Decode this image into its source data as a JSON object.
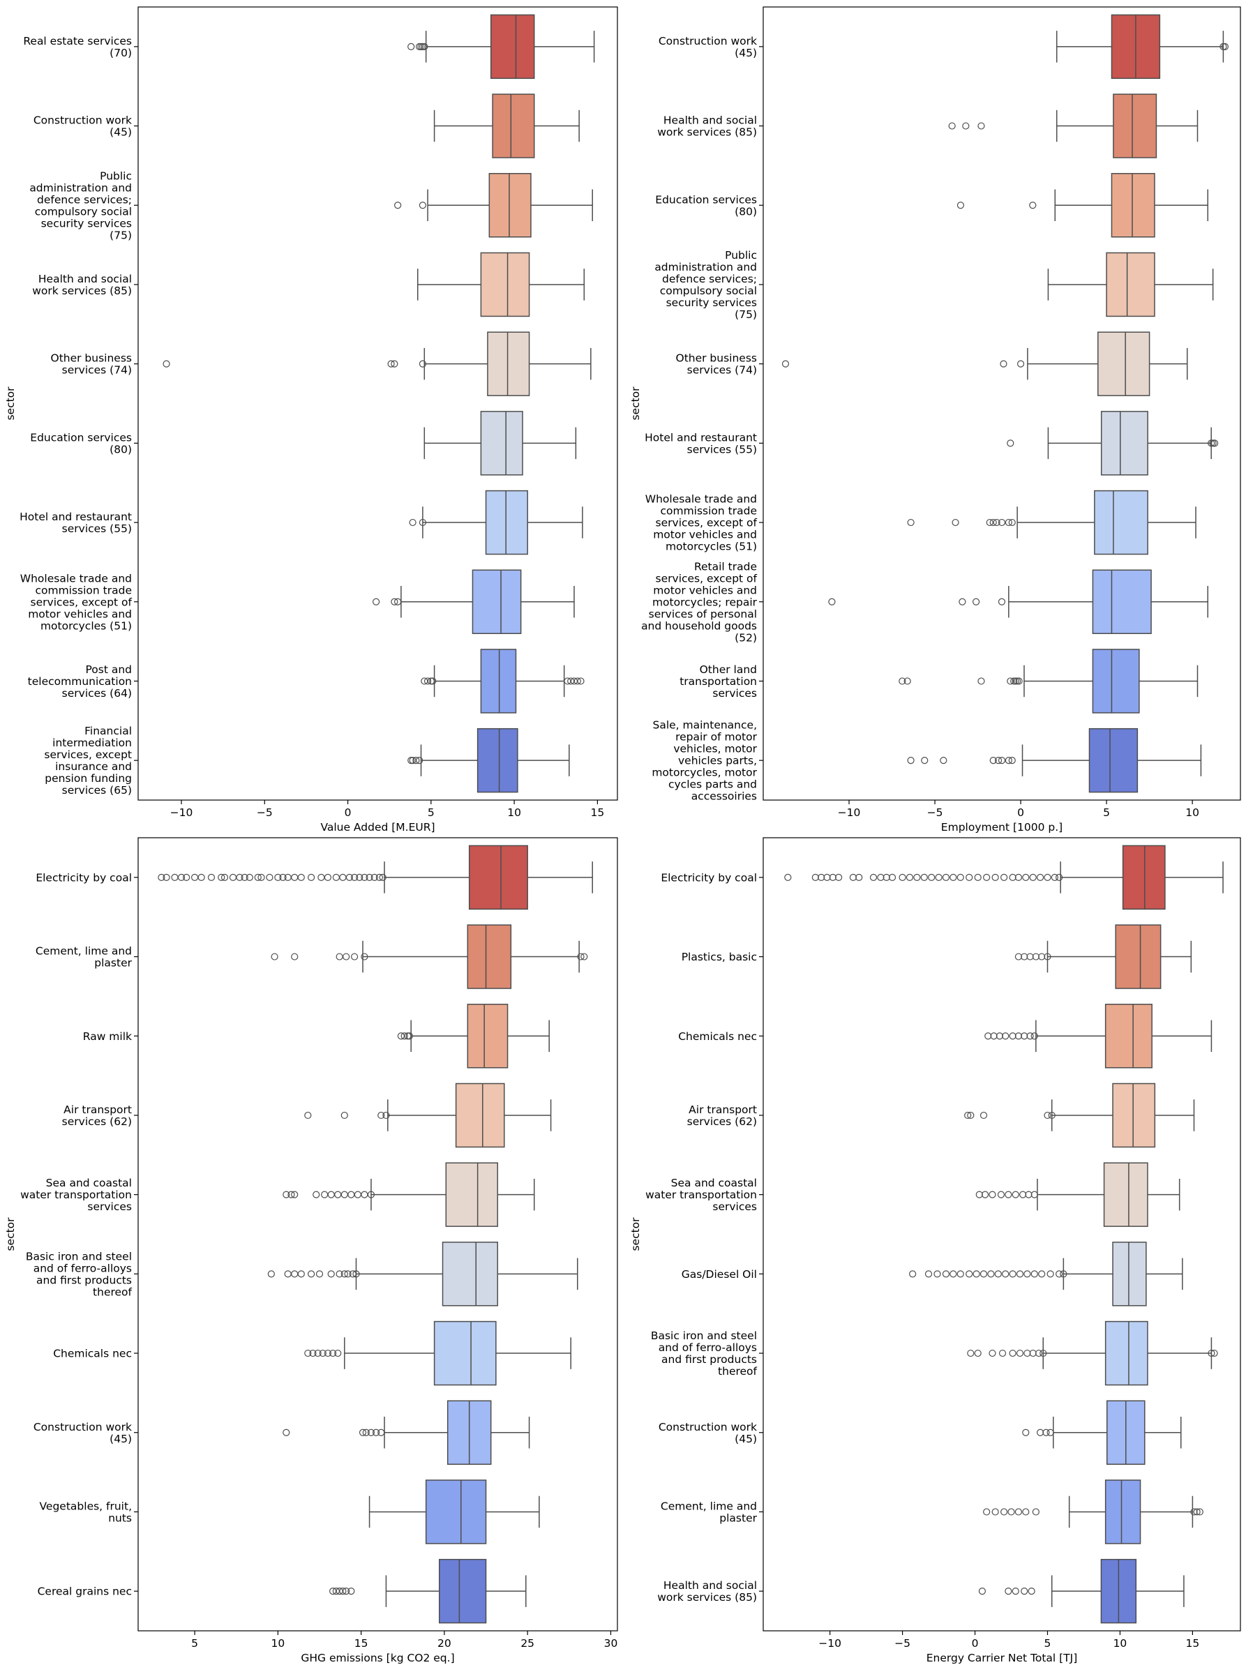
{
  "chart_data": [
    {
      "type": "boxplot",
      "orientation": "horizontal",
      "xlabel": "Value Added [M.EUR]",
      "ylabel": "sector",
      "xlim": [
        -12.6,
        16.2
      ],
      "xticks": [
        -10,
        -5,
        0,
        5,
        10,
        15
      ],
      "palette": [
        "#c85550",
        "#dc8a72",
        "#e8a98e",
        "#edc5b0",
        "#e6d7ce",
        "#d2d9e6",
        "#bacff4",
        "#a1b9f4",
        "#8aa3ee",
        "#6b7fd7"
      ],
      "categories": [
        "Real estate services\n(70)",
        "Construction work\n(45)",
        "Public\nadministration and\ndefence services;\ncompulsory social\nsecurity services\n(75)",
        "Health and social\nwork services (85)",
        "Other business\nservices (74)",
        "Education services\n(80)",
        "Hotel and restaurant\nservices (55)",
        "Wholesale trade and\ncommission trade\nservices, except of\nmotor vehicles and\nmotorcycles (51)",
        "Post and\ntelecommunication\nservices (64)",
        "Financial\nintermediation\nservices, except\ninsurance and\npension funding\nservices (65)"
      ],
      "boxes": [
        {
          "whislo": 4.7,
          "q1": 8.6,
          "med": 10.1,
          "q3": 11.2,
          "whishi": 14.8,
          "fliers": [
            3.8,
            4.3,
            4.4,
            4.5,
            4.6
          ]
        },
        {
          "whislo": 5.2,
          "q1": 8.7,
          "med": 9.8,
          "q3": 11.2,
          "whishi": 13.9,
          "fliers": []
        },
        {
          "whislo": 4.8,
          "q1": 8.5,
          "med": 9.7,
          "q3": 11.0,
          "whishi": 14.7,
          "fliers": [
            3.0,
            4.5
          ]
        },
        {
          "whislo": 4.2,
          "q1": 8.0,
          "med": 9.6,
          "q3": 10.9,
          "whishi": 14.2,
          "fliers": []
        },
        {
          "whislo": 4.6,
          "q1": 8.4,
          "med": 9.6,
          "q3": 10.9,
          "whishi": 14.6,
          "fliers": [
            -10.9,
            2.6,
            2.8,
            4.5
          ]
        },
        {
          "whislo": 4.6,
          "q1": 8.0,
          "med": 9.5,
          "q3": 10.5,
          "whishi": 13.7,
          "fliers": []
        },
        {
          "whislo": 4.5,
          "q1": 8.3,
          "med": 9.5,
          "q3": 10.8,
          "whishi": 14.1,
          "fliers": [
            3.9,
            4.5
          ]
        },
        {
          "whislo": 3.2,
          "q1": 7.5,
          "med": 9.2,
          "q3": 10.4,
          "whishi": 13.6,
          "fliers": [
            1.7,
            2.8,
            3.0
          ]
        },
        {
          "whislo": 5.2,
          "q1": 8.0,
          "med": 9.1,
          "q3": 10.1,
          "whishi": 13.0,
          "fliers": [
            4.6,
            4.8,
            5.0,
            5.1,
            13.2,
            13.4,
            13.6,
            13.8,
            14.0
          ]
        },
        {
          "whislo": 4.4,
          "q1": 7.8,
          "med": 9.1,
          "q3": 10.2,
          "whishi": 13.3,
          "fliers": [
            3.8,
            3.9,
            4.1,
            4.3
          ]
        }
      ]
    },
    {
      "type": "boxplot",
      "orientation": "horizontal",
      "xlabel": "Employment [1000 p.]",
      "ylabel": "sector",
      "xlim": [
        -15.0,
        12.8
      ],
      "xticks": [
        -10,
        -5,
        0,
        5,
        10
      ],
      "palette": [
        "#c85550",
        "#dc8a72",
        "#e8a98e",
        "#edc5b0",
        "#e6d7ce",
        "#d2d9e6",
        "#bacff4",
        "#a1b9f4",
        "#8aa3ee",
        "#6b7fd7"
      ],
      "categories": [
        "Construction work\n(45)",
        "Health and social\nwork services (85)",
        "Education services\n(80)",
        "Public\nadministration and\ndefence services;\ncompulsory social\nsecurity services\n(75)",
        "Other business\nservices (74)",
        "Hotel and restaurant\nservices (55)",
        "Wholesale trade and\ncommission trade\nservices, except of\nmotor vehicles and\nmotorcycles (51)",
        "Retail  trade\nservices, except of\nmotor vehicles and\nmotorcycles; repair\nservices of personal\nand household goods\n(52)",
        "Other land\ntransportation\nservices",
        "Sale, maintenance,\nrepair of motor\nvehicles, motor\nvehicles parts,\nmotorcycles, motor\ncycles parts and\naccessoiries"
      ],
      "boxes": [
        {
          "whislo": 2.1,
          "q1": 5.3,
          "med": 6.7,
          "q3": 8.1,
          "whishi": 11.8,
          "fliers": [
            11.8,
            11.9
          ]
        },
        {
          "whislo": 2.1,
          "q1": 5.4,
          "med": 6.5,
          "q3": 7.9,
          "whishi": 10.3,
          "fliers": [
            -4.0,
            -3.2,
            -2.3
          ]
        },
        {
          "whislo": 2.0,
          "q1": 5.3,
          "med": 6.5,
          "q3": 7.8,
          "whishi": 10.9,
          "fliers": [
            -3.5,
            0.7
          ]
        },
        {
          "whislo": 1.6,
          "q1": 5.0,
          "med": 6.2,
          "q3": 7.8,
          "whishi": 11.2,
          "fliers": []
        },
        {
          "whislo": 0.4,
          "q1": 4.5,
          "med": 6.1,
          "q3": 7.5,
          "whishi": 9.7,
          "fliers": [
            -13.7,
            -1.0,
            0.0
          ]
        },
        {
          "whislo": 1.6,
          "q1": 4.7,
          "med": 5.8,
          "q3": 7.4,
          "whishi": 11.1,
          "fliers": [
            -0.6,
            11.1,
            11.2,
            11.3
          ]
        },
        {
          "whislo": -0.2,
          "q1": 4.3,
          "med": 5.4,
          "q3": 7.4,
          "whishi": 10.2,
          "fliers": [
            -6.4,
            -3.8,
            -1.8,
            -1.6,
            -1.4,
            -1.1,
            -0.7,
            -0.5
          ]
        },
        {
          "whislo": -0.7,
          "q1": 4.2,
          "med": 5.3,
          "q3": 7.6,
          "whishi": 10.9,
          "fliers": [
            -11.0,
            -3.4,
            -2.6,
            -1.1
          ]
        },
        {
          "whislo": 0.2,
          "q1": 4.2,
          "med": 5.3,
          "q3": 6.9,
          "whishi": 10.3,
          "fliers": [
            -6.9,
            -6.6,
            -2.3,
            -0.6,
            -0.4,
            -0.3,
            -0.2,
            -0.1
          ]
        },
        {
          "whislo": 0.1,
          "q1": 4.0,
          "med": 5.2,
          "q3": 6.8,
          "whishi": 10.5,
          "fliers": [
            -6.4,
            -5.6,
            -4.5,
            -1.6,
            -1.3,
            -1.1,
            -0.7,
            -0.5
          ]
        }
      ]
    },
    {
      "type": "boxplot",
      "orientation": "horizontal",
      "xlabel": "GHG emissions [kg CO2 eq.]",
      "ylabel": "sector",
      "xlim": [
        1.6,
        30.4
      ],
      "xticks": [
        5,
        10,
        15,
        20,
        25,
        30
      ],
      "palette": [
        "#c85550",
        "#dc8a72",
        "#e8a98e",
        "#edc5b0",
        "#e6d7ce",
        "#d2d9e6",
        "#bacff4",
        "#a1b9f4",
        "#8aa3ee",
        "#6b7fd7"
      ],
      "categories": [
        "Electricity by coal",
        "Cement, lime and\nplaster",
        "Raw milk",
        "Air transport\nservices (62)",
        "Sea and coastal\nwater transportation\nservices",
        "Basic iron and steel\nand of ferro-alloys\nand first products\nthereof",
        "Chemicals nec",
        "Construction work\n(45)",
        "Vegetables, fruit,\nnuts",
        "Cereal grains nec"
      ],
      "boxes": [
        {
          "whislo": 16.4,
          "q1": 21.5,
          "med": 23.4,
          "q3": 25.0,
          "whishi": 28.9,
          "fliers": [
            3.0,
            3.3,
            3.8,
            4.2,
            4.5,
            5.0,
            5.4,
            6.0,
            6.6,
            6.8,
            7.3,
            7.7,
            8.0,
            8.3,
            8.8,
            9.0,
            9.5,
            10.0,
            10.3,
            10.6,
            11.0,
            11.4,
            12.0,
            12.6,
            13.0,
            13.5,
            13.9,
            14.3,
            14.6,
            14.9,
            15.2,
            15.5,
            15.8,
            16.1,
            16.3
          ]
        },
        {
          "whislo": 15.1,
          "q1": 21.4,
          "med": 22.5,
          "q3": 24.0,
          "whishi": 28.1,
          "fliers": [
            9.8,
            11.0,
            13.7,
            14.1,
            14.6,
            15.2,
            28.2,
            28.4
          ]
        },
        {
          "whislo": 18.0,
          "q1": 21.4,
          "med": 22.4,
          "q3": 23.8,
          "whishi": 26.3,
          "fliers": [
            17.4,
            17.6,
            17.8,
            17.9
          ]
        },
        {
          "whislo": 16.6,
          "q1": 20.7,
          "med": 22.3,
          "q3": 23.6,
          "whishi": 26.4,
          "fliers": [
            11.8,
            14.0,
            16.2,
            16.5
          ]
        },
        {
          "whislo": 15.6,
          "q1": 20.1,
          "med": 22.0,
          "q3": 23.2,
          "whishi": 25.4,
          "fliers": [
            10.5,
            10.8,
            11.0,
            12.3,
            12.8,
            13.2,
            13.6,
            14.0,
            14.4,
            14.8,
            15.2,
            15.6
          ]
        },
        {
          "whislo": 14.7,
          "q1": 19.9,
          "med": 21.9,
          "q3": 23.2,
          "whishi": 28.0,
          "fliers": [
            9.6,
            10.6,
            11.0,
            11.4,
            12.0,
            12.5,
            13.2,
            13.7,
            14.0,
            14.2,
            14.5,
            14.7
          ]
        },
        {
          "whislo": 14.0,
          "q1": 19.4,
          "med": 21.6,
          "q3": 23.1,
          "whishi": 27.6,
          "fliers": [
            11.8,
            12.1,
            12.4,
            12.7,
            13.0,
            13.3,
            13.6
          ]
        },
        {
          "whislo": 16.4,
          "q1": 20.2,
          "med": 21.5,
          "q3": 22.8,
          "whishi": 25.1,
          "fliers": [
            10.5,
            15.1,
            15.3,
            15.6,
            15.9,
            16.2
          ]
        },
        {
          "whislo": 15.5,
          "q1": 18.9,
          "med": 21.0,
          "q3": 22.5,
          "whishi": 25.7,
          "fliers": []
        },
        {
          "whislo": 16.5,
          "q1": 19.7,
          "med": 20.9,
          "q3": 22.5,
          "whishi": 24.9,
          "fliers": [
            13.3,
            13.5,
            13.7,
            13.9,
            14.1,
            14.4
          ]
        }
      ]
    },
    {
      "type": "boxplot",
      "orientation": "horizontal",
      "xlabel": "Energy Carrier Net Total [TJ]",
      "ylabel": "sector",
      "xlim": [
        -14.6,
        18.3
      ],
      "xticks": [
        -10,
        -5,
        0,
        5,
        10,
        15
      ],
      "palette": [
        "#c85550",
        "#dc8a72",
        "#e8a98e",
        "#edc5b0",
        "#e6d7ce",
        "#d2d9e6",
        "#bacff4",
        "#a1b9f4",
        "#8aa3ee",
        "#6b7fd7"
      ],
      "categories": [
        "Electricity by coal",
        "Plastics, basic",
        "Chemicals nec",
        "Air transport\nservices (62)",
        "Sea and coastal\nwater transportation\nservices",
        "Gas/Diesel Oil",
        "Basic iron and steel\nand of ferro-alloys\nand first products\nthereof",
        "Construction work\n(45)",
        "Cement, lime and\nplaster",
        "Health and social\nwork services (85)"
      ],
      "boxes": [
        {
          "whislo": 5.9,
          "q1": 10.2,
          "med": 11.7,
          "q3": 13.1,
          "whishi": 17.1,
          "fliers": [
            -12.9,
            -11.0,
            -10.6,
            -10.2,
            -9.8,
            -9.4,
            -8.4,
            -8.0,
            -7.0,
            -6.5,
            -6.1,
            -5.7,
            -5.0,
            -4.5,
            -4.0,
            -3.5,
            -3.0,
            -2.5,
            -2.0,
            -1.5,
            -1.0,
            -0.4,
            0.2,
            0.8,
            1.4,
            2.0,
            2.6,
            3.0,
            3.5,
            4.0,
            4.5,
            5.0,
            5.5,
            5.8
          ]
        },
        {
          "whislo": 5.0,
          "q1": 9.7,
          "med": 11.4,
          "q3": 12.8,
          "whishi": 14.9,
          "fliers": [
            3.0,
            3.4,
            3.8,
            4.2,
            4.6,
            5.0
          ]
        },
        {
          "whislo": 4.2,
          "q1": 9.0,
          "med": 10.9,
          "q3": 12.2,
          "whishi": 16.3,
          "fliers": [
            0.9,
            1.3,
            1.7,
            2.1,
            2.6,
            3.0,
            3.4,
            3.8,
            4.1
          ]
        },
        {
          "whislo": 5.3,
          "q1": 9.5,
          "med": 10.9,
          "q3": 12.4,
          "whishi": 15.1,
          "fliers": [
            -0.5,
            -0.3,
            0.6,
            5.0,
            5.3
          ]
        },
        {
          "whislo": 4.3,
          "q1": 8.9,
          "med": 10.6,
          "q3": 11.9,
          "whishi": 14.1,
          "fliers": [
            0.3,
            0.7,
            1.2,
            1.8,
            2.3,
            2.8,
            3.3,
            3.7,
            4.1
          ]
        },
        {
          "whislo": 6.1,
          "q1": 9.5,
          "med": 10.6,
          "q3": 11.8,
          "whishi": 14.3,
          "fliers": [
            -4.3,
            -3.2,
            -2.6,
            -2.0,
            -1.5,
            -1.0,
            -0.4,
            0.1,
            0.6,
            1.1,
            1.6,
            2.1,
            2.6,
            3.1,
            3.6,
            4.1,
            4.6,
            5.2,
            5.8,
            6.1
          ]
        },
        {
          "whislo": 4.7,
          "q1": 9.0,
          "med": 10.6,
          "q3": 11.9,
          "whishi": 16.3,
          "fliers": [
            -0.3,
            0.2,
            1.2,
            1.9,
            2.6,
            3.1,
            3.6,
            4.0,
            4.4,
            4.7,
            16.3,
            16.5
          ]
        },
        {
          "whislo": 5.4,
          "q1": 9.1,
          "med": 10.4,
          "q3": 11.7,
          "whishi": 14.2,
          "fliers": [
            3.5,
            4.5,
            4.9,
            5.2
          ]
        },
        {
          "whislo": 6.5,
          "q1": 9.0,
          "med": 10.1,
          "q3": 11.4,
          "whishi": 15.0,
          "fliers": [
            0.8,
            1.4,
            2.0,
            2.5,
            3.0,
            3.5,
            4.2,
            15.1,
            15.3,
            15.5
          ]
        },
        {
          "whislo": 5.3,
          "q1": 8.7,
          "med": 9.9,
          "q3": 11.1,
          "whishi": 14.4,
          "fliers": [
            0.5,
            2.3,
            2.8,
            3.4,
            3.9
          ]
        }
      ]
    }
  ]
}
